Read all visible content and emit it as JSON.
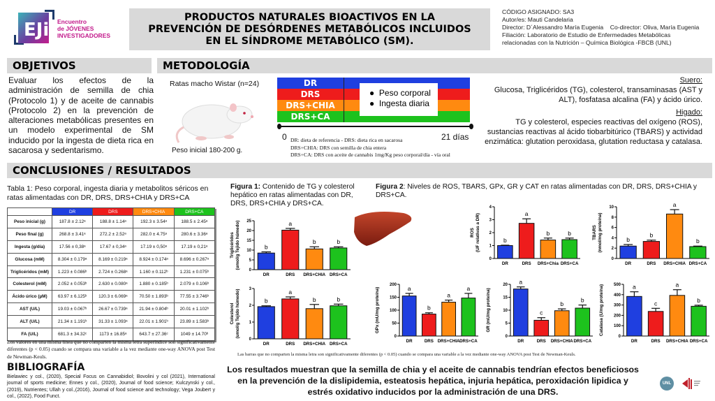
{
  "logo": {
    "line1": "Encuentro",
    "line2": "de JÓVENES",
    "line3": "INVESTIGADORES",
    "mark": "EJi"
  },
  "title": "PRODUCTOS NATURALES BIOACTIVOS EN LA\nPREVENCIÓN DE DESÓRDENES METABÓLICOS INCLUIDOS\nEN EL SÍNDROME METABÓLICO (SM).",
  "info": {
    "code": "CÓDIGO ASIGNADO: SA3",
    "authors": "Autor/es: Mauti Candelaria",
    "director": "Director: D´Alessandro María Eugenia",
    "codirector": "Co-director: Oliva, María Eugenia",
    "affiliation1": "Filiación: Laboratorio de Estudio de Enfermedades Metabólicas",
    "affiliation2": "relacionadas con la Nutrición – Química Biológica -FBCB (UNL)"
  },
  "objetivos": {
    "heading": "OBJETIVOS",
    "text": "Evaluar los efectos de la administración de semilla de chia (Protocolo 1) y de aceite de cannabis (Protocolo 2) en la prevención de alteraciones metabólicas presentes en un modelo experimental de SM inducido por la ingesta de dieta rica en sacarosa y sedentarismo."
  },
  "metodologia": {
    "heading": "METODOLOGÍA",
    "rats_label": "Ratas macho Wistar (n=24)",
    "weight_label": "Peso inicial 180-200 g.",
    "groups": [
      {
        "label": "DR",
        "color": "#1f3fe0"
      },
      {
        "label": "DRS",
        "color": "#ee1c1c"
      },
      {
        "label": "DRS+CHIA",
        "color": "#ff8a10"
      },
      {
        "label": "DRS+CA",
        "color": "#1dc21d"
      }
    ],
    "measures": [
      "Peso corporal",
      "Ingesta diaria"
    ],
    "timeline_start": "0",
    "timeline_end": "21 días",
    "abbreviations": [
      "DR: dieta de referencia  - DRS: dieta rica en sacarosa",
      "DRS+CHIA: DRS con semilla de chia entera",
      "DRS+CA: DRS con aceite de cannabis 1mg/Kg peso corporal/día - vía oral"
    ],
    "suero_title": "Suero:",
    "suero_text": "Glucosa, Triglicéridos (TG), colesterol, transaminasas (AST y ALT), fosfatasa alcalina (FA) y ácido úrico.",
    "higado_title": "Higado:",
    "higado_text": "TG y colesterol, especies reactivas del oxígeno (ROS), sustancias reactivas al ácido tiobarbitúrico (TBARS) y actividad enzimática: glutation peroxidasa, glutation reductasa y catalasa."
  },
  "resultados": {
    "heading": "CONCLUSIONES / RESULTADOS",
    "table_caption": "Tabla 1: Peso corporal, ingesta diaria y metabolitos séricos en ratas alimentadas con DR, DRS, DRS+CHIA y DRS+CA",
    "table_note": "Los valores en una misma línea que no comparten la misma letra superíndice son significativamente diferentes (p < 0.05) cuando se compara una variable a la vez mediante one-way ANOVA post Test de Newman-Keuls.",
    "fig1_bold": "Figura 1:",
    "fig1_caption": " Contenido de TG y colesterol hepático en ratas alimentadas con DR, DRS, DRS+CHIA y DRS+CA.",
    "fig2_bold": "Figura 2",
    "fig2_caption": ": Niveles de ROS, TBARS, GPx, GR y CAT en ratas alimentadas con DR, DRS, DRS+CHIA y DRS+CA.",
    "anova_note": "Las barras que no comparten la misma letra son significativamente diferentes (p < 0.05) cuando se compara una variable a la vez mediante one-way ANOVA post Test de Newman-Keuls.",
    "conclusion": "Los resultados muestran que la semilla de chia y el aceite de cannabis tendrían efectos beneficiosos en la prevención de la dislipidemia, esteatosis hepática, injuria hepática, peroxidación lipidica y estrés oxidativo inducidos por la administración de una DRS."
  },
  "bibliografia": {
    "heading": "BIBLIOGRAFÍA",
    "text": "Bielawiec y col., (2020), Special Focus on Cannabidiol; Bovolini y col (2021), International journal of sports medicine; Ennes y col., (2020), Journal of food science; Kulczynski y col., (2019), Nutrientes;  Ullah y col.,(2016), Journal of food science and technology; Vega Joubert y col., (2022), Food Funct."
  },
  "footer_logos": {
    "unl": "UNL"
  },
  "chart_data": [
    {
      "type": "table",
      "title": "Tabla 1",
      "columns": [
        "DR",
        "DRS",
        "DRS+CHIA",
        "DRS+CA"
      ],
      "column_colors": [
        "#1f3fe0",
        "#ee1c1c",
        "#ff8a10",
        "#1dc21d"
      ],
      "rows": [
        {
          "label": "Peso inicial (g)",
          "values": [
            "187.8 ± 2.12ᵃ",
            "188.8 ± 1.14ᵃ",
            "192.3 ± 3.54ᵃ",
            "188.5 ± 2.45ᵃ"
          ]
        },
        {
          "label": "Peso final (g)",
          "values": [
            "268.8 ± 3.41ᵃ",
            "272.2 ± 2.52ᵃ",
            "282.0 ± 4.75ᵃ",
            "280.6 ± 3.36ᵃ"
          ]
        },
        {
          "label": "Ingesta (g/día)",
          "values": [
            "17.56 ± 0,38ᵃ",
            "17.67 ± 0,34ᵃ",
            "17.19 ± 0,50ᵃ",
            "17.19 ± 0,21ᵃ"
          ]
        },
        {
          "label": "Glucosa (mM)",
          "values": [
            "8.304 ± 0.179ᵃ",
            "8.169 ± 0.219ᵃ",
            "8.924 ± 0.174ᵃ",
            "8.696 ± 0.267ᵃ"
          ]
        },
        {
          "label": "Triglicéridos (mM)",
          "values": [
            "1.223 ±  0.086ᵇ",
            "2.724 ± 0.268ᵃ",
            "1.160 ± 0.112ᵇ",
            "1.231 ± 0.075ᵇ"
          ]
        },
        {
          "label": "Colesterol (mM)",
          "values": [
            "2.052 ± 0.053ᵇ",
            "2.630 ± 0.080ᵃ",
            "1.880 ± 0.185ᵇ",
            "2.079 ± 0.106ᵇ"
          ]
        },
        {
          "label": "Ácido úrico (µM)",
          "values": [
            "63.97 ± 6.125ᵇ",
            "120.3 ± 6.069ᵃ",
            "70.50 ± 1.893ᵇ",
            "77.55 ± 3.746ᵇ"
          ]
        },
        {
          "label": "AST (U/L)",
          "values": [
            "19.03 ± 0.067ᵇ",
            "26.67 ± 0.739ᵃ",
            "21.94 ± 0.804ᵇ",
            "20.01 ± 1.102ᵇ"
          ]
        },
        {
          "label": "ALT (U/L)",
          "values": [
            "21.34 ± 1.191ᵇ",
            "31.33 ± 1.093ᵃ",
            "22.01 ± 1.901ᵇ",
            "23.89 ± 1.583ᵇ"
          ]
        },
        {
          "label": "FA (U/L)",
          "values": [
            "681.3 ± 34.32ᶜ",
            "1173 ± 16.85ᵃ",
            "643.7 ± 27.36ᶜ",
            "1049 ± 14.70ᵇ"
          ]
        }
      ]
    },
    {
      "type": "bar",
      "id": "tg",
      "ylabel": "Triglicéridos\n(umol/g Tejido húmedo)",
      "categories": [
        "DR",
        "DRS",
        "DRS+CHIA",
        "DRS+CA"
      ],
      "values": [
        8.5,
        20.2,
        10.6,
        11.1
      ],
      "errors": [
        0.6,
        0.9,
        1.1,
        0.6
      ],
      "letters": [
        "b",
        "a",
        "b",
        "b"
      ],
      "ylim": [
        0,
        25
      ],
      "yticks": [
        0,
        5,
        10,
        15,
        20,
        25
      ]
    },
    {
      "type": "bar",
      "id": "col",
      "ylabel": "Colesterol\n(umol/g Tejido húmedo)",
      "categories": [
        "DR",
        "DRS",
        "DRS+CHIA",
        "DRS+CA"
      ],
      "values": [
        1.92,
        2.38,
        1.8,
        1.97
      ],
      "errors": [
        0.05,
        0.12,
        0.25,
        0.1
      ],
      "letters": [
        "b",
        "a",
        "b",
        "b"
      ],
      "ylim": [
        0,
        3
      ],
      "yticks": [
        0,
        1,
        2,
        3
      ]
    },
    {
      "type": "bar",
      "id": "ros",
      "ylabel": "ROS\n(UF relativas a DR)",
      "categories": [
        "DR",
        "DRS",
        "DRS+Chia",
        "DRS+CA"
      ],
      "values": [
        1.0,
        2.72,
        1.43,
        1.46
      ],
      "errors": [
        0.03,
        0.35,
        0.15,
        0.12
      ],
      "letters": [
        "b",
        "a",
        "b",
        "b"
      ],
      "ylim": [
        0,
        4
      ],
      "yticks": [
        0,
        1,
        2,
        3,
        4
      ]
    },
    {
      "type": "bar",
      "id": "tbars",
      "ylabel": "TBARS\n(nmol/mg proteína)",
      "categories": [
        "DR",
        "DRS",
        "DRS+CHIA",
        "DRS+CA"
      ],
      "values": [
        2.4,
        3.3,
        8.6,
        2.3
      ],
      "errors": [
        0.3,
        0.25,
        0.85,
        0.1
      ],
      "letters": [
        "b",
        "b",
        "a",
        "b"
      ],
      "ylim": [
        0,
        10
      ],
      "yticks": [
        0,
        2,
        4,
        6,
        8,
        10
      ]
    },
    {
      "type": "bar",
      "id": "gpx",
      "ylabel": "GPx  (mU/mg proteína)",
      "categories": [
        "DR",
        "DRS",
        "DRS+CHIA",
        "DRS+CA"
      ],
      "values": [
        155,
        85,
        131,
        147
      ],
      "errors": [
        10,
        5,
        8,
        18
      ],
      "letters": [
        "a",
        "b",
        "a",
        "a"
      ],
      "ylim": [
        0,
        200
      ],
      "yticks": [
        0,
        50,
        100,
        150,
        200
      ]
    },
    {
      "type": "bar",
      "id": "gr",
      "ylabel": "GR (mU/mg proteína)",
      "categories": [
        "DR",
        "DRS",
        "DRS+CHIA",
        "DRS+CA"
      ],
      "values": [
        18.2,
        6.1,
        9.8,
        10.8
      ],
      "errors": [
        0.8,
        1.0,
        0.7,
        1.2
      ],
      "letters": [
        "a",
        "c",
        "b",
        "b"
      ],
      "ylim": [
        0,
        20
      ],
      "yticks": [
        0,
        5,
        10,
        15,
        20
      ]
    },
    {
      "type": "bar",
      "id": "cat",
      "ylabel": "Catalasa (U/mg proteína)",
      "categories": [
        "DR",
        "DRS",
        "DRS+CHIA",
        "DRS+CA"
      ],
      "values": [
        383,
        238,
        393,
        288
      ],
      "errors": [
        45,
        30,
        55,
        10
      ],
      "letters": [
        "a",
        "c",
        "a",
        "b"
      ],
      "ylim": [
        0,
        500
      ],
      "yticks": [
        0,
        100,
        200,
        300,
        400,
        500
      ]
    }
  ]
}
